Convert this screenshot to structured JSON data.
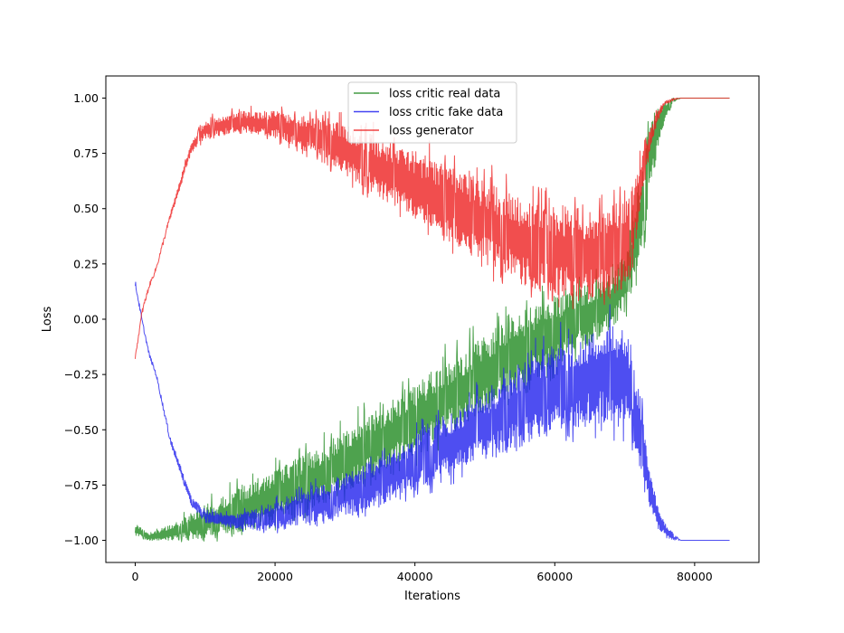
{
  "chart_data": {
    "type": "line",
    "title": "",
    "xlabel": "Iterations",
    "ylabel": "Loss",
    "xlim": [
      -4200,
      89200
    ],
    "ylim": [
      -1.1,
      1.1
    ],
    "x_ticks": [
      0,
      20000,
      40000,
      60000,
      80000
    ],
    "x_tick_labels": [
      "0",
      "20000",
      "40000",
      "60000",
      "80000"
    ],
    "y_ticks": [
      1.0,
      0.75,
      0.5,
      0.25,
      0.0,
      -0.25,
      -0.5,
      -0.75,
      -1.0
    ],
    "y_tick_labels": [
      "1.00",
      "0.75",
      "0.50",
      "0.25",
      "0.00",
      "−0.25",
      "−0.50",
      "−0.75",
      "−1.00"
    ],
    "grid": false,
    "legend_position": "top-center",
    "series": [
      {
        "name": "loss critic real data",
        "color": "#228B22",
        "x": [
          0,
          2000,
          5000,
          10000,
          15000,
          20000,
          25000,
          30000,
          35000,
          40000,
          45000,
          50000,
          55000,
          60000,
          65000,
          68000,
          70000,
          71000,
          72000,
          73000,
          74000,
          75000,
          76000,
          77000,
          78000,
          85000
        ],
        "y_upper": [
          -0.92,
          -0.97,
          -0.93,
          -0.84,
          -0.76,
          -0.68,
          -0.6,
          -0.5,
          -0.4,
          -0.3,
          -0.18,
          -0.07,
          0.03,
          0.11,
          0.16,
          0.2,
          0.3,
          0.45,
          0.62,
          0.82,
          0.92,
          0.97,
          0.99,
          1.0,
          1.0,
          1.0
        ],
        "y_lower": [
          -0.98,
          -1.0,
          -1.0,
          -0.99,
          -0.96,
          -0.92,
          -0.86,
          -0.78,
          -0.7,
          -0.62,
          -0.52,
          -0.42,
          -0.32,
          -0.22,
          -0.12,
          -0.05,
          0.03,
          0.12,
          0.2,
          0.4,
          0.62,
          0.82,
          0.92,
          0.98,
          1.0,
          1.0
        ]
      },
      {
        "name": "loss critic fake data",
        "color": "#2222EE",
        "x": [
          0,
          1000,
          2000,
          3000,
          5000,
          8000,
          10000,
          15000,
          20000,
          25000,
          30000,
          35000,
          40000,
          45000,
          50000,
          55000,
          60000,
          65000,
          68000,
          70000,
          71000,
          72000,
          73000,
          74000,
          75000,
          76000,
          77000,
          78000,
          85000
        ],
        "y_upper": [
          0.18,
          0.0,
          -0.15,
          -0.24,
          -0.53,
          -0.8,
          -0.87,
          -0.88,
          -0.83,
          -0.77,
          -0.7,
          -0.62,
          -0.53,
          -0.43,
          -0.33,
          -0.22,
          -0.12,
          -0.05,
          -0.02,
          -0.05,
          -0.1,
          -0.3,
          -0.55,
          -0.75,
          -0.87,
          -0.93,
          -0.97,
          -1.0,
          -1.0
        ],
        "y_lower": [
          0.15,
          -0.02,
          -0.17,
          -0.26,
          -0.56,
          -0.84,
          -0.92,
          -0.95,
          -0.95,
          -0.92,
          -0.89,
          -0.84,
          -0.78,
          -0.71,
          -0.64,
          -0.57,
          -0.51,
          -0.48,
          -0.48,
          -0.49,
          -0.52,
          -0.68,
          -0.8,
          -0.9,
          -0.96,
          -0.99,
          -1.0,
          -1.0,
          -1.0
        ]
      },
      {
        "name": "loss generator",
        "color": "#EE2222",
        "x": [
          0,
          1000,
          2000,
          3000,
          5000,
          8000,
          10000,
          15000,
          20000,
          25000,
          30000,
          35000,
          40000,
          45000,
          50000,
          55000,
          60000,
          65000,
          68000,
          70000,
          71000,
          72000,
          73000,
          74000,
          75000,
          76000,
          77000,
          78000,
          85000
        ],
        "y_upper": [
          -0.17,
          0.05,
          0.16,
          0.24,
          0.48,
          0.8,
          0.9,
          0.94,
          0.94,
          0.92,
          0.88,
          0.82,
          0.76,
          0.69,
          0.62,
          0.55,
          0.52,
          0.5,
          0.51,
          0.55,
          0.6,
          0.7,
          0.8,
          0.9,
          0.96,
          0.99,
          1.0,
          1.0,
          1.0
        ],
        "y_lower": [
          -0.18,
          0.02,
          0.14,
          0.22,
          0.45,
          0.75,
          0.82,
          0.85,
          0.82,
          0.75,
          0.65,
          0.55,
          0.45,
          0.35,
          0.25,
          0.16,
          0.1,
          0.08,
          0.1,
          0.15,
          0.25,
          0.45,
          0.65,
          0.82,
          0.92,
          0.97,
          0.99,
          1.0,
          1.0
        ]
      }
    ]
  }
}
